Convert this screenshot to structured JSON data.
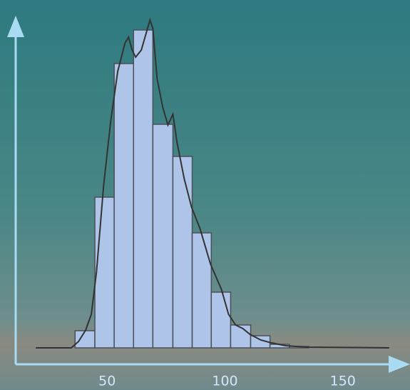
{
  "chart_data": {
    "type": "histogram",
    "bins": [
      36.4,
      44.8,
      53,
      61.2,
      69.4,
      77.9,
      86.1,
      94.2,
      102.4,
      110.9,
      119.1,
      127.3,
      135.5
    ],
    "values": [
      24,
      211,
      398,
      445,
      313,
      268,
      161,
      78,
      32,
      17,
      5,
      2
    ],
    "color": "#aec4e8",
    "density": {
      "x": [
        19.7,
        34.8,
        37.9,
        40.9,
        43.3,
        45.5,
        48.5,
        51.5,
        54.5,
        57.6,
        59.1,
        60.6,
        62.1,
        64.5,
        66.7,
        68.2,
        69.4,
        71.2,
        73.6,
        75.8,
        77.9,
        79.7,
        82.7,
        85.8,
        89.4,
        93.9,
        98.5,
        101.5,
        104.5,
        107.6,
        110.6,
        115.2,
        119.7,
        125.8,
        134.8,
        169.7
      ],
      "values": [
        0,
        0,
        9,
        25,
        47,
        107,
        227,
        317,
        387,
        427,
        435,
        417,
        407,
        417,
        442,
        459,
        447,
        377,
        337,
        312,
        327,
        287,
        237,
        197,
        167,
        117,
        82,
        47,
        32,
        27,
        19,
        11,
        7,
        3,
        1,
        0
      ],
      "color": "#333333"
    },
    "xlim": [
      11.2,
      177
    ],
    "xticks": [
      50,
      100,
      150
    ],
    "ylim": [
      0,
      462
    ],
    "grid": false
  }
}
